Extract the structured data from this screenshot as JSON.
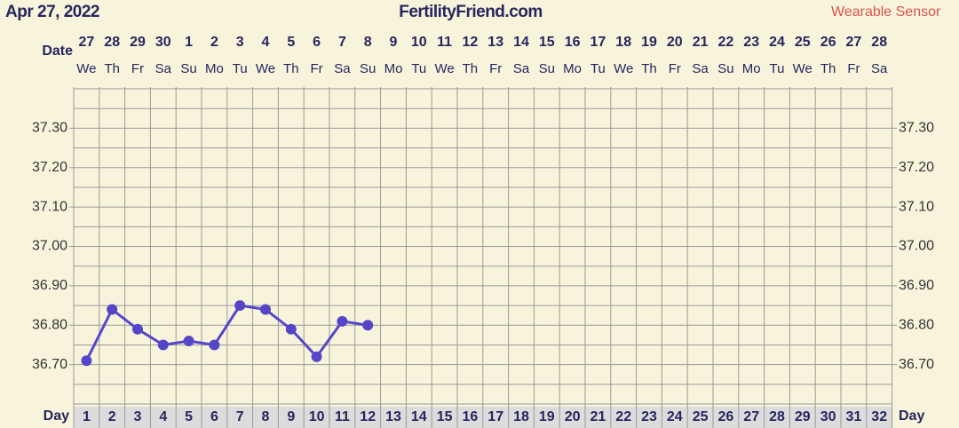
{
  "header": {
    "date": "Apr 27, 2022",
    "site": "FertilityFriend.com",
    "sensor": "Wearable Sensor"
  },
  "chart_data": {
    "type": "line",
    "row_labels": {
      "date": "Date",
      "day": "Day"
    },
    "dates": [
      27,
      28,
      29,
      30,
      1,
      2,
      3,
      4,
      5,
      6,
      7,
      8,
      9,
      10,
      11,
      12,
      13,
      14,
      15,
      16,
      17,
      18,
      19,
      20,
      21,
      22,
      23,
      24,
      25,
      26,
      27,
      28
    ],
    "weekdays": [
      "We",
      "Th",
      "Fr",
      "Sa",
      "Su",
      "Mo",
      "Tu",
      "We",
      "Th",
      "Fr",
      "Sa",
      "Su",
      "Mo",
      "Tu",
      "We",
      "Th",
      "Fr",
      "Sa",
      "Su",
      "Mo",
      "Tu",
      "We",
      "Th",
      "Fr",
      "Sa",
      "Su",
      "Mo",
      "Tu",
      "We",
      "Th",
      "Fr",
      "Sa"
    ],
    "categories": [
      1,
      2,
      3,
      4,
      5,
      6,
      7,
      8,
      9,
      10,
      11,
      12,
      13,
      14,
      15,
      16,
      17,
      18,
      19,
      20,
      21,
      22,
      23,
      24,
      25,
      26,
      27,
      28,
      29,
      30,
      31,
      32
    ],
    "values": [
      36.71,
      36.84,
      36.79,
      36.75,
      36.76,
      36.75,
      36.85,
      36.84,
      36.79,
      36.72,
      36.81,
      36.8,
      null,
      null,
      null,
      null,
      null,
      null,
      null,
      null,
      null,
      null,
      null,
      null,
      null,
      null,
      null,
      null,
      null,
      null,
      null,
      null
    ],
    "color": "#5546c8",
    "ylim": [
      36.6,
      37.4
    ],
    "yticks": [
      {
        "value": 36.7,
        "label": "36.70"
      },
      {
        "value": 36.8,
        "label": "36.80"
      },
      {
        "value": 36.9,
        "label": "36.90"
      },
      {
        "value": 37.0,
        "label": "37.00"
      },
      {
        "value": 37.1,
        "label": "37.10"
      },
      {
        "value": 37.2,
        "label": "37.20"
      },
      {
        "value": 37.3,
        "label": "37.30"
      }
    ],
    "grid": true
  }
}
